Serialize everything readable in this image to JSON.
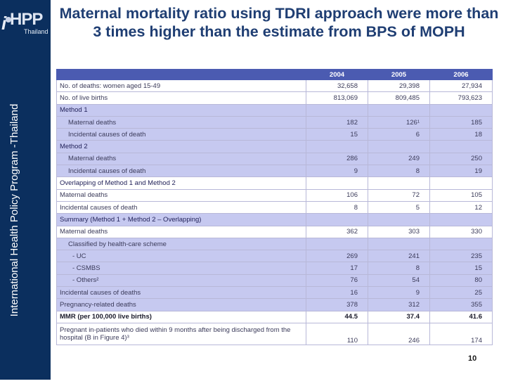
{
  "sidebar": {
    "logo_i": "i",
    "logo_hpp": "HPP",
    "logo_country": "Thailand",
    "vertical_text": "International Health Policy Program -Thailand"
  },
  "title": "Maternal mortality ratio using TDRI approach were more than 3 times higher than the estimate from BPS of MOPH",
  "table": {
    "columns": [
      "",
      "2004",
      "2005",
      "2006"
    ],
    "rows": [
      {
        "label": "No. of deaths: women aged 15-49",
        "values": [
          "32,658",
          "29,398",
          "27,934"
        ]
      },
      {
        "label": "No. of live births",
        "values": [
          "813,069",
          "809,485",
          "793,623"
        ]
      },
      {
        "label": "Method 1",
        "values": [
          "",
          "",
          ""
        ]
      },
      {
        "label": "Maternal deaths",
        "values": [
          "182",
          "126¹",
          "185"
        ]
      },
      {
        "label": "Incidental causes of death",
        "values": [
          "15",
          "6",
          "18"
        ]
      },
      {
        "label": "Method 2",
        "values": [
          "",
          "",
          ""
        ]
      },
      {
        "label": "Maternal deaths",
        "values": [
          "286",
          "249",
          "250"
        ]
      },
      {
        "label": "Incidental causes of death",
        "values": [
          "9",
          "8",
          "19"
        ]
      },
      {
        "label": "Overlapping of Method 1 and Method 2",
        "values": [
          "",
          "",
          ""
        ]
      },
      {
        "label": "Maternal deaths",
        "values": [
          "106",
          "72",
          "105"
        ]
      },
      {
        "label": "Incidental causes of death",
        "values": [
          "8",
          "5",
          "12"
        ]
      },
      {
        "label": "Summary (Method 1 + Method 2 – Overlapping)",
        "values": [
          "",
          "",
          ""
        ]
      },
      {
        "label": "Maternal deaths",
        "values": [
          "362",
          "303",
          "330"
        ]
      },
      {
        "label": "Classified by health-care scheme",
        "values": [
          "",
          "",
          ""
        ]
      },
      {
        "label": "- UC",
        "values": [
          "269",
          "241",
          "235"
        ]
      },
      {
        "label": "- CSMBS",
        "values": [
          "17",
          "8",
          "15"
        ]
      },
      {
        "label": "- Others²",
        "values": [
          "76",
          "54",
          "80"
        ]
      },
      {
        "label": "Incidental causes of deaths",
        "values": [
          "16",
          "9",
          "25"
        ]
      },
      {
        "label": "Pregnancy-related deaths",
        "values": [
          "378",
          "312",
          "355"
        ]
      },
      {
        "label": "MMR (per 100,000 live births)",
        "values": [
          "44.5",
          "37.4",
          "41.6"
        ]
      },
      {
        "label": "Pregnant in-patients who died within 9 months after being discharged from the hospital (B in Figure 4)³",
        "values": [
          "110",
          "246",
          "174"
        ]
      }
    ]
  },
  "page_number": "10",
  "colors": {
    "sidebar": "#0b2f5e",
    "title": "#1f3e73",
    "table_header": "#4b5bb1",
    "table_shade": "#c6c9f0"
  }
}
